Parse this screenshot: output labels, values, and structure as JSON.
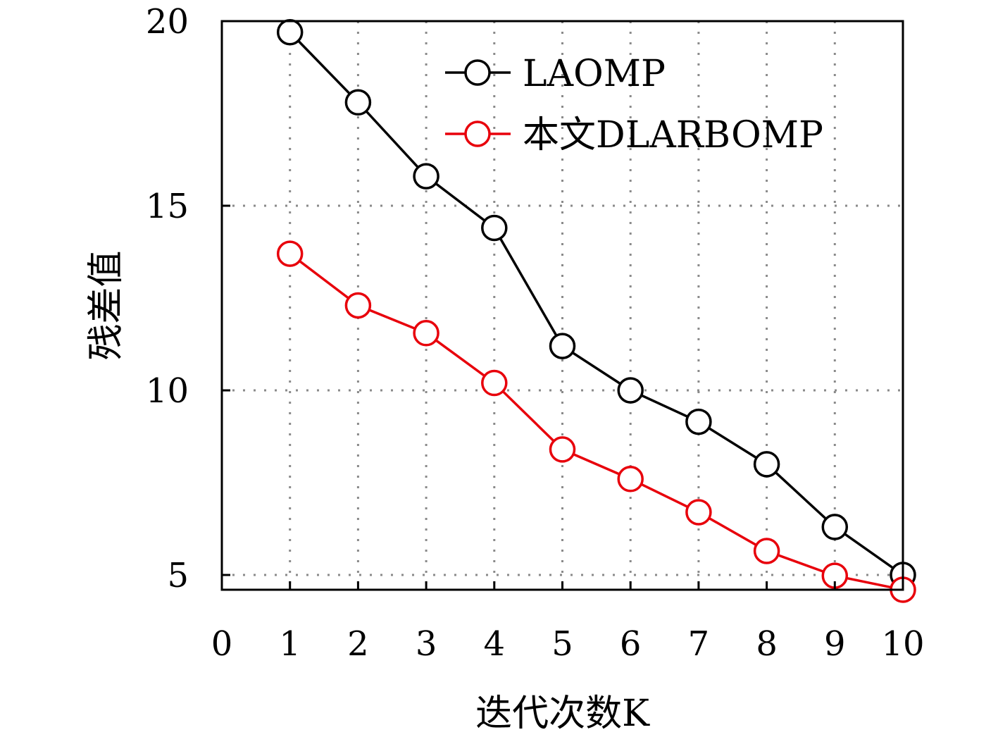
{
  "chart_data": {
    "type": "line",
    "xlabel": "迭代次数K",
    "ylabel": "残差值",
    "xlim": [
      0,
      10
    ],
    "ylim": [
      4.6,
      20
    ],
    "xticks": [
      0,
      1,
      2,
      3,
      4,
      5,
      6,
      7,
      8,
      9,
      10
    ],
    "yticks": [
      5,
      10,
      15,
      20
    ],
    "grid": true,
    "legend_position": "top-right",
    "x": [
      1,
      2,
      3,
      4,
      5,
      6,
      7,
      8,
      9,
      10
    ],
    "series": [
      {
        "name": "LAOMP",
        "color": "#000000",
        "marker": "circle-open",
        "values": [
          19.7,
          17.8,
          15.8,
          14.4,
          11.2,
          10.0,
          9.15,
          8.0,
          6.3,
          5.0
        ]
      },
      {
        "name": "本文DLARBOMP",
        "color": "#e8000b",
        "marker": "circle-open",
        "values": [
          13.7,
          12.3,
          11.55,
          10.2,
          8.4,
          7.6,
          6.7,
          5.65,
          4.98,
          4.6
        ]
      }
    ]
  }
}
